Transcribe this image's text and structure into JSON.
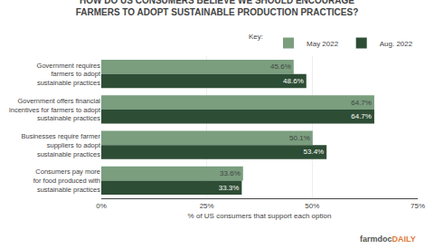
{
  "chart_data": {
    "type": "bar",
    "orientation": "horizontal",
    "title": "HOW DO US CONSUMERS BELIEVE WE SHOULD ENCOURAGE\nFARMERS TO ADOPT SUSTAINABLE PRODUCTION PRACTICES?",
    "categories": [
      "Government requires\nfarmers to adopt\nsustainable practices",
      "Government offers financial\nincentives for farmers to adopt\nsustainable practices",
      "Businesses require farmer\nsuppliers to adopt\nsustainable practices",
      "Consumers pay more\nfor food produced with\nsustainable practices"
    ],
    "series": [
      {
        "name": "May 2022",
        "color": "#7a9e7e",
        "values": [
          45.6,
          64.7,
          50.1,
          33.6
        ],
        "value_labels": [
          "45.6%",
          "64.7%",
          "50.1%",
          "33.6%"
        ]
      },
      {
        "name": "Aug. 2022",
        "color": "#2e4d35",
        "values": [
          48.6,
          64.7,
          53.4,
          33.3
        ],
        "value_labels": [
          "48.6%",
          "64.7%",
          "53.4%",
          "33.3%"
        ]
      }
    ],
    "xlabel": "% of US consumers that support each option",
    "xlim": [
      0,
      75
    ],
    "xticks": [
      {
        "value": 0,
        "label": "0%"
      },
      {
        "value": 25,
        "label": "25%"
      },
      {
        "value": 50,
        "label": "50%"
      },
      {
        "value": 75,
        "label": "75%"
      }
    ],
    "grid": true,
    "data_labels": true,
    "legend": "top right",
    "legend_title": "Key:",
    "annotations": [
      {
        "text": "farmdoc",
        "color": "#555555"
      },
      {
        "text": "DAILY",
        "color": "#e07b39"
      }
    ]
  }
}
